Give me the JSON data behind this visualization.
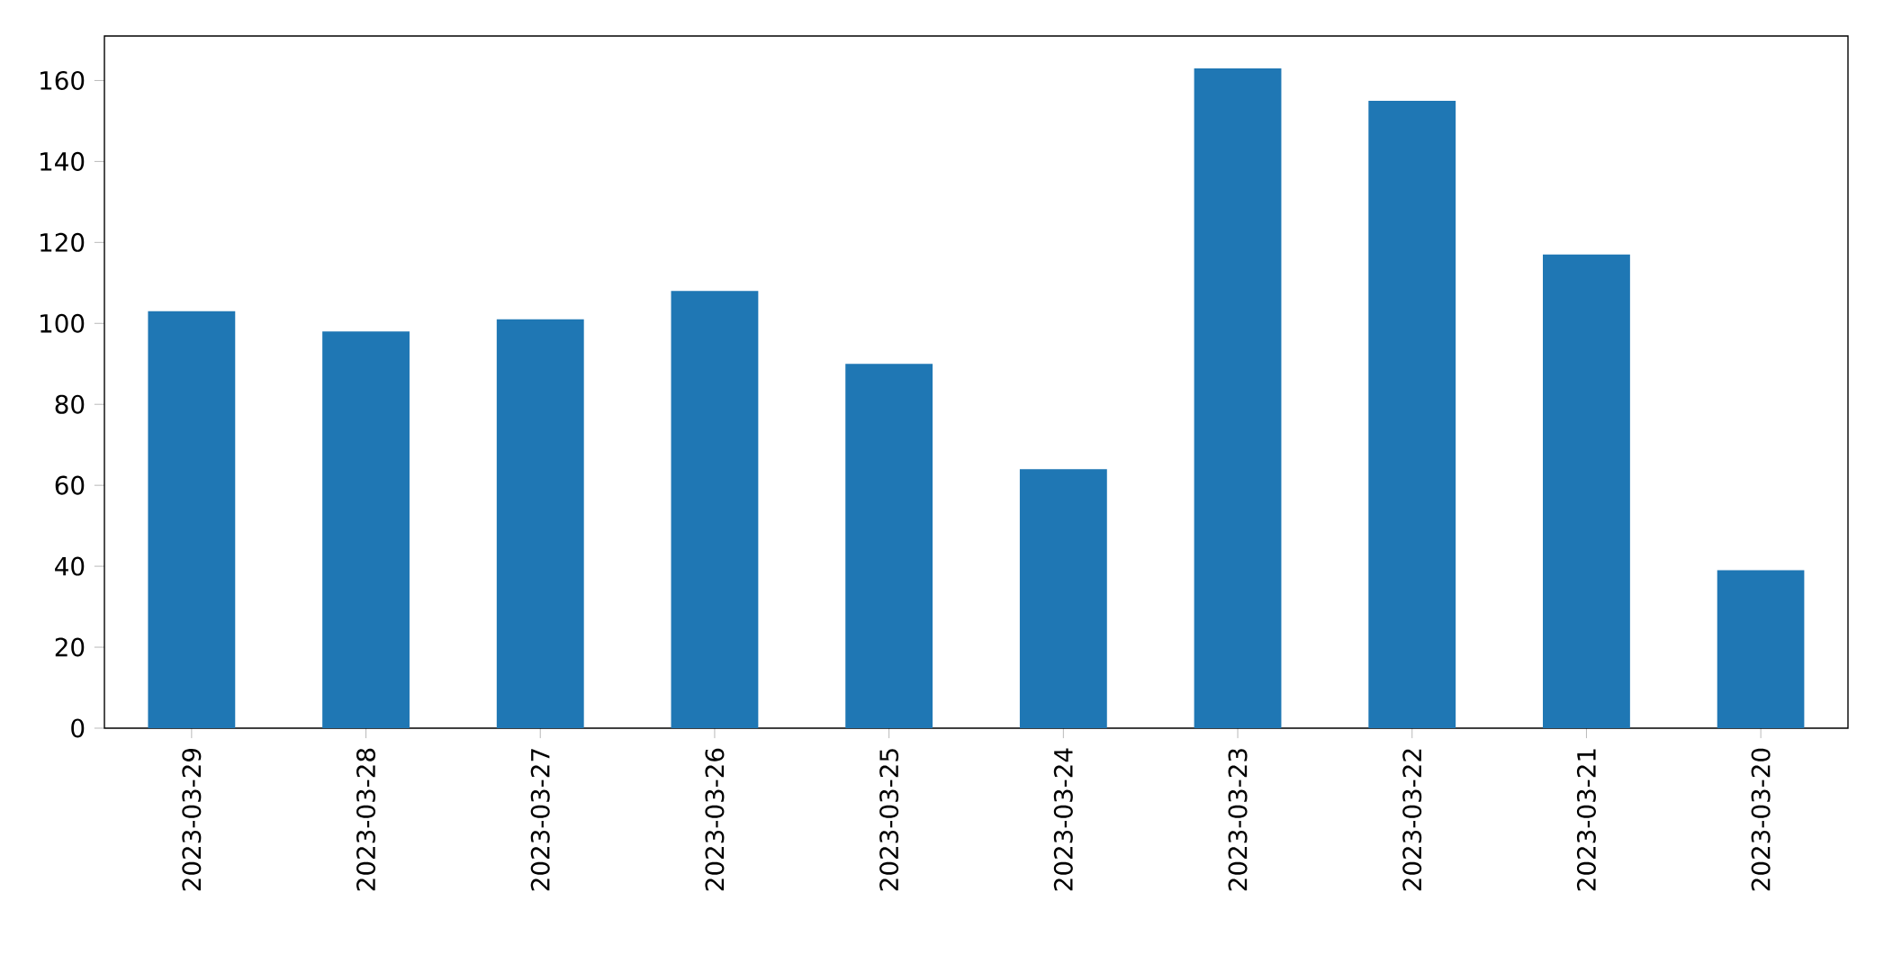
{
  "chart_data": {
    "type": "bar",
    "categories": [
      "2023-03-29",
      "2023-03-28",
      "2023-03-27",
      "2023-03-26",
      "2023-03-25",
      "2023-03-24",
      "2023-03-23",
      "2023-03-22",
      "2023-03-21",
      "2023-03-20"
    ],
    "values": [
      103,
      98,
      101,
      108,
      90,
      64,
      163,
      155,
      117,
      39
    ],
    "color": "#1f77b4",
    "ylim": [
      0,
      171
    ],
    "yticks": [
      0,
      20,
      40,
      60,
      80,
      100,
      120,
      140,
      160
    ]
  }
}
